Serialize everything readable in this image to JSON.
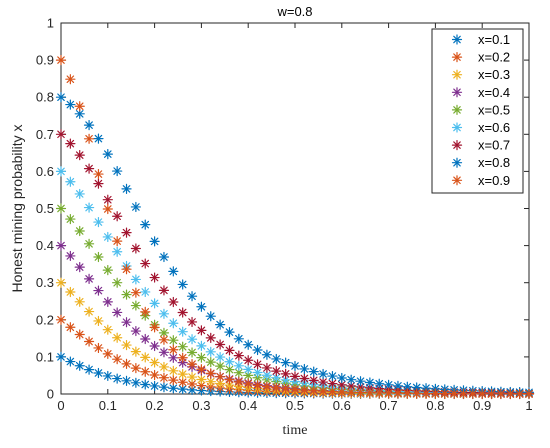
{
  "chart_data": {
    "type": "scatter",
    "title": "w=0.8",
    "xlabel": "time",
    "ylabel": "Honest mining probability x",
    "xlim": [
      0,
      1
    ],
    "ylim": [
      0,
      1
    ],
    "xticks": [
      "0",
      "0.1",
      "0.2",
      "0.3",
      "0.4",
      "0.5",
      "0.6",
      "0.7",
      "0.8",
      "0.9",
      "1"
    ],
    "yticks": [
      "0",
      "0.1",
      "0.2",
      "0.3",
      "0.4",
      "0.5",
      "0.6",
      "0.7",
      "0.8",
      "0.9",
      "1"
    ],
    "grid": false,
    "legend_position": "top-right",
    "marker": "*",
    "x": [
      0,
      0.02,
      0.04,
      0.06,
      0.08,
      0.1,
      0.12,
      0.14,
      0.16,
      0.18,
      0.2,
      0.22,
      0.24,
      0.26,
      0.28,
      0.3,
      0.32,
      0.34,
      0.36,
      0.38,
      0.4,
      0.42,
      0.44,
      0.46,
      0.48,
      0.5,
      0.52,
      0.54,
      0.56,
      0.58,
      0.6,
      0.62,
      0.64,
      0.66,
      0.68,
      0.7,
      0.72,
      0.74,
      0.76,
      0.78,
      0.8,
      0.82,
      0.84,
      0.86,
      0.88,
      0.9,
      0.92,
      0.94,
      0.96,
      0.98,
      1.0
    ],
    "series": [
      {
        "name": "x=0.1",
        "color": "#0072BD",
        "values": [
          0.1,
          0.0875,
          0.0761,
          0.0658,
          0.0567,
          0.0487,
          0.0416,
          0.0355,
          0.0302,
          0.0256,
          0.0217,
          0.0183,
          0.0155,
          0.0131,
          0.0111,
          0.0093,
          0.0079,
          0.0066,
          0.0056,
          0.0047,
          0.004,
          0.0034,
          0.0028,
          0.0024,
          0.002,
          0.0017,
          0.0014,
          0.0012,
          0.001,
          0.0008,
          0.0007,
          0.0006,
          0.0005,
          0.0004,
          0.0004,
          0.0003,
          0.0003,
          0.0002,
          0.0002,
          0.0002,
          0.0001,
          0.0001,
          0.0001,
          0.0001,
          0.0001,
          0.0001,
          0.0001,
          0.0,
          0.0,
          0.0,
          0.0
        ]
      },
      {
        "name": "x=0.2",
        "color": "#D95319",
        "values": [
          0.2,
          0.1799,
          0.1603,
          0.1415,
          0.1241,
          0.1082,
          0.0939,
          0.0811,
          0.0698,
          0.0599,
          0.0512,
          0.0437,
          0.0373,
          0.0317,
          0.0269,
          0.0228,
          0.0193,
          0.0164,
          0.0139,
          0.0117,
          0.0099,
          0.0084,
          0.0071,
          0.006,
          0.0051,
          0.0043,
          0.0036,
          0.0031,
          0.0026,
          0.0022,
          0.0018,
          0.0016,
          0.0013,
          0.0011,
          0.0009,
          0.0008,
          0.0007,
          0.0006,
          0.0005,
          0.0004,
          0.0003,
          0.0003,
          0.0002,
          0.0002,
          0.0002,
          0.0001,
          0.0001,
          0.0001,
          0.0001,
          0.0001,
          0.0001
        ]
      },
      {
        "name": "x=0.3",
        "color": "#EDB120",
        "values": [
          0.3,
          0.2749,
          0.2485,
          0.2222,
          0.1969,
          0.1733,
          0.1516,
          0.1319,
          0.1143,
          0.0987,
          0.085,
          0.073,
          0.0625,
          0.0535,
          0.0457,
          0.039,
          0.0332,
          0.0283,
          0.0241,
          0.0205,
          0.0174,
          0.0148,
          0.0126,
          0.0107,
          0.009,
          0.0077,
          0.0065,
          0.0055,
          0.0047,
          0.004,
          0.0034,
          0.0028,
          0.0024,
          0.0021,
          0.0017,
          0.0015,
          0.0013,
          0.0011,
          0.0009,
          0.0008,
          0.0006,
          0.0005,
          0.0005,
          0.0004,
          0.0003,
          0.0003,
          0.0002,
          0.0002,
          0.0002,
          0.0001,
          0.0001
        ]
      },
      {
        "name": "x=0.4",
        "color": "#7E2F8E",
        "values": [
          0.4,
          0.3722,
          0.3419,
          0.3103,
          0.2788,
          0.2484,
          0.2198,
          0.1935,
          0.1697,
          0.1483,
          0.1293,
          0.1124,
          0.0975,
          0.0845,
          0.0731,
          0.0632,
          0.0545,
          0.047,
          0.0405,
          0.0349,
          0.0301,
          0.0259,
          0.0223,
          0.0192,
          0.0165,
          0.0142,
          0.0122,
          0.0105,
          0.009,
          0.0078,
          0.0067,
          0.0057,
          0.0049,
          0.0042,
          0.0036,
          0.0031,
          0.0027,
          0.0023,
          0.002,
          0.0017,
          0.0015,
          0.0013,
          0.0011,
          0.0009,
          0.0008,
          0.0007,
          0.0006,
          0.0005,
          0.0004,
          0.0004,
          0.0003
        ]
      },
      {
        "name": "x=0.5",
        "color": "#77AC30",
        "values": [
          0.5,
          0.4715,
          0.4394,
          0.4048,
          0.3692,
          0.3339,
          0.3,
          0.268,
          0.2384,
          0.2113,
          0.1867,
          0.1647,
          0.145,
          0.1275,
          0.1119,
          0.0981,
          0.0859,
          0.0752,
          0.0658,
          0.0575,
          0.0502,
          0.0438,
          0.0382,
          0.0333,
          0.029,
          0.0253,
          0.022,
          0.0192,
          0.0167,
          0.0145,
          0.0126,
          0.011,
          0.0096,
          0.0083,
          0.0072,
          0.0063,
          0.0055,
          0.0047,
          0.0041,
          0.0036,
          0.0031,
          0.0027,
          0.0024,
          0.002,
          0.0018,
          0.0015,
          0.0013,
          0.0012,
          0.001,
          0.0009,
          0.0008
        ]
      },
      {
        "name": "x=0.6",
        "color": "#4DBEEE",
        "values": [
          0.6,
          0.5722,
          0.5393,
          0.5025,
          0.4634,
          0.4233,
          0.3835,
          0.3451,
          0.3088,
          0.2751,
          0.2442,
          0.2161,
          0.1907,
          0.168,
          0.1477,
          0.1297,
          0.1137,
          0.0995,
          0.087,
          0.076,
          0.0664,
          0.058,
          0.0505,
          0.044,
          0.0383,
          0.0334,
          0.0291,
          0.0253,
          0.022,
          0.0191,
          0.0166,
          0.0144,
          0.0125,
          0.0109,
          0.0094,
          0.0082,
          0.0071,
          0.0062,
          0.0054,
          0.0047,
          0.0041,
          0.0035,
          0.0031,
          0.0027,
          0.0023,
          0.002,
          0.0017,
          0.0015,
          0.0013,
          0.0011,
          0.001
        ]
      },
      {
        "name": "x=0.7",
        "color": "#A2142F",
        "values": [
          0.7,
          0.6748,
          0.6438,
          0.6075,
          0.567,
          0.5237,
          0.4792,
          0.4349,
          0.3921,
          0.3516,
          0.3139,
          0.2794,
          0.248,
          0.2196,
          0.1942,
          0.1715,
          0.1513,
          0.1334,
          0.1175,
          0.1034,
          0.091,
          0.08,
          0.0703,
          0.0617,
          0.0542,
          0.0476,
          0.0418,
          0.0367,
          0.0322,
          0.0282,
          0.0247,
          0.0217,
          0.019,
          0.0166,
          0.0146,
          0.0128,
          0.0112,
          0.0098,
          0.0086,
          0.0075,
          0.0066,
          0.0058,
          0.005,
          0.0044,
          0.0039,
          0.0034,
          0.003,
          0.0026,
          0.0023,
          0.002,
          0.0017
        ]
      },
      {
        "name": "x=0.8",
        "color": "#0072BD",
        "values": [
          0.8,
          0.7801,
          0.7552,
          0.7247,
          0.6883,
          0.6466,
          0.6009,
          0.5528,
          0.5042,
          0.4566,
          0.4114,
          0.3692,
          0.3305,
          0.2953,
          0.2636,
          0.2351,
          0.2097,
          0.187,
          0.1668,
          0.1488,
          0.1328,
          0.1185,
          0.1058,
          0.0945,
          0.0845,
          0.0755,
          0.0675,
          0.0604,
          0.054,
          0.0483,
          0.0432,
          0.0386,
          0.0345,
          0.0309,
          0.0276,
          0.0247,
          0.022,
          0.0197,
          0.0176,
          0.0157,
          0.014,
          0.0125,
          0.0112,
          0.01,
          0.0089,
          0.0079,
          0.0071,
          0.0063,
          0.0056,
          0.005,
          0.0045
        ]
      },
      {
        "name": "x=0.9",
        "color": "#D95319",
        "values": [
          0.9,
          0.8485,
          0.7757,
          0.6879,
          0.5928,
          0.4986,
          0.412,
          0.3364,
          0.2731,
          0.2214,
          0.1796,
          0.1461,
          0.1193,
          0.0978,
          0.0806,
          0.0667,
          0.0555,
          0.0463,
          0.0388,
          0.0326,
          0.0275,
          0.0233,
          0.0198,
          0.0168,
          0.0143,
          0.0122,
          0.0104,
          0.0089,
          0.0077,
          0.0066,
          0.0057,
          0.0049,
          0.0042,
          0.0036,
          0.0031,
          0.0027,
          0.0023,
          0.002,
          0.0017,
          0.0015,
          0.0013,
          0.0011,
          0.001,
          0.0008,
          0.0007,
          0.0006,
          0.0005,
          0.0005,
          0.0004,
          0.0003,
          0.0003
        ]
      }
    ]
  }
}
